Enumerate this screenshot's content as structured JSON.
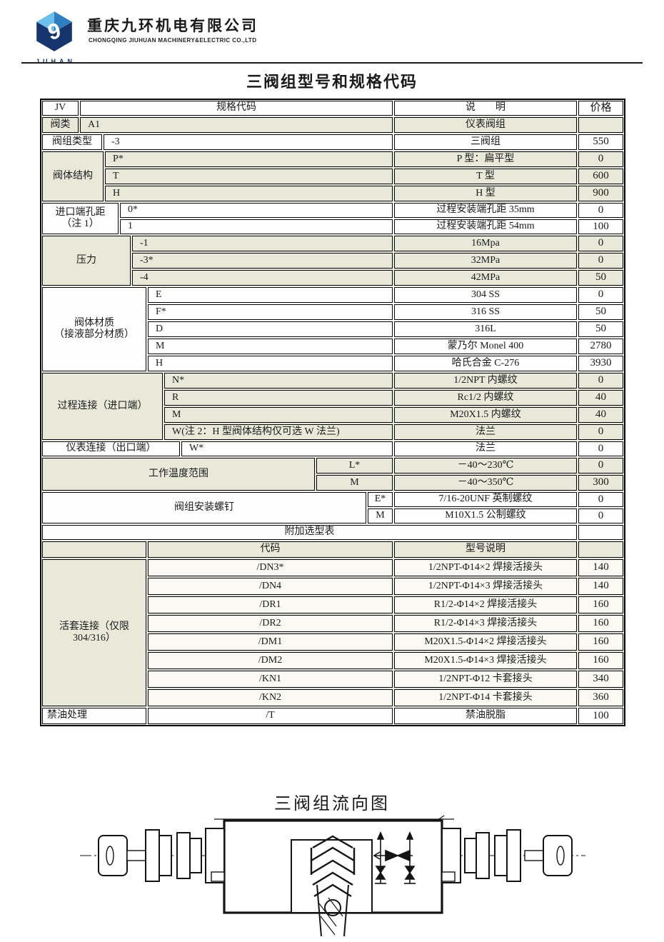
{
  "letterhead": {
    "logo_text": "JUHAN",
    "company_cn": "重庆九环机电有限公司",
    "company_en": "CHONGQING JIUHUAN MACHINERY&ELECTRIC CO.,LTD"
  },
  "doc_title": "三阀组型号和规格代码",
  "colors": {
    "shade_beige": "#e9e9d9",
    "row_light": "#fbfaf2",
    "logo_dark_blue": "#16356e",
    "logo_mid_blue": "#2f7fc0",
    "logo_light_blue": "#6ac0ea",
    "border_black": "#000000"
  },
  "table": {
    "header": {
      "col_jv": "JV",
      "col_code": "规格代码",
      "col_desc": "说　　明",
      "col_price": "价格"
    },
    "sections": [
      {
        "type": "header",
        "bg": "white"
      },
      {
        "label": "阀类",
        "bg": "beige",
        "rows": [
          {
            "code": "A1",
            "desc": "仪表阀组",
            "price": ""
          }
        ]
      },
      {
        "label": "阀组类型",
        "bg": "white",
        "rows": [
          {
            "code": "-3",
            "desc": "三阀组",
            "price": "550"
          }
        ]
      },
      {
        "label": "阀体结构",
        "bg": "beige",
        "rows": [
          {
            "code": "P*",
            "desc": "P 型：扁平型",
            "price": "0"
          },
          {
            "code": "T",
            "desc": "T 型",
            "price": "600"
          },
          {
            "code": "H",
            "desc": "H 型",
            "price": "900"
          }
        ]
      },
      {
        "label": "进口端孔距\n（注 1）",
        "bg": "white",
        "rows": [
          {
            "code": "0*",
            "desc": "过程安装端孔距 35mm",
            "price": "0"
          },
          {
            "code": "1",
            "desc": "过程安装端孔距 54mm",
            "price": "100"
          }
        ]
      },
      {
        "label": "压力",
        "bg": "beige",
        "rows": [
          {
            "code": "-1",
            "desc": "16Mpa",
            "price": "0"
          },
          {
            "code": "-3*",
            "desc": "32MPa",
            "price": "0"
          },
          {
            "code": "-4",
            "desc": "42MPa",
            "price": "50"
          }
        ]
      },
      {
        "label": "阀体材质\n（接液部分材质）",
        "bg": "white",
        "rows": [
          {
            "code": "E",
            "desc": "304 SS",
            "price": "0"
          },
          {
            "code": "F*",
            "desc": "316 SS",
            "price": "50"
          },
          {
            "code": "D",
            "desc": "316L",
            "price": "50"
          },
          {
            "code": "M",
            "desc": "蒙乃尔 Monel 400",
            "price": "2780"
          },
          {
            "code": "H",
            "desc": "哈氏合金 C-276",
            "price": "3930"
          }
        ]
      },
      {
        "label": "过程连接（进口端）",
        "bg": "beige",
        "rows": [
          {
            "code": "N*",
            "desc": "1/2NPT 内螺纹",
            "price": "0"
          },
          {
            "code": "R",
            "desc": "Rc1/2 内螺纹",
            "price": "40"
          },
          {
            "code": "M",
            "desc": "M20X1.5 内螺纹",
            "price": "40"
          },
          {
            "code": "W(注 2：H 型阀体结构仅可选 W 法兰)",
            "desc": "法兰",
            "price": "0"
          }
        ]
      },
      {
        "label": "仪表连接（出口端）",
        "bg": "white",
        "rows": [
          {
            "code": "W*",
            "desc": "法兰",
            "price": "0"
          }
        ]
      },
      {
        "label": "工作温度范围",
        "bg": "beige",
        "code_align": "center",
        "rows": [
          {
            "code": "L*",
            "desc": "－40～230℃",
            "price": "0"
          },
          {
            "code": "M",
            "desc": "－40～350℃",
            "price": "300"
          }
        ]
      },
      {
        "label": "阀组安装螺钉",
        "bg": "white",
        "code_align": "center",
        "rows": [
          {
            "code": "E*",
            "desc": "7/16-20UNF 英制螺纹",
            "price": "0"
          },
          {
            "code": "M",
            "desc": "M10X1.5 公制螺纹",
            "price": "0"
          }
        ]
      },
      {
        "type": "span",
        "bg": "white",
        "text": "附加选型表",
        "price": ""
      },
      {
        "label": "",
        "bg": "beige",
        "code_align": "center",
        "rows": [
          {
            "code": "代码",
            "desc": "型号说明",
            "price": ""
          }
        ]
      },
      {
        "label": "活套连接（仅限\n304/316）",
        "bg": "beige",
        "code_align": "center",
        "light_cells": true,
        "rows": [
          {
            "code": "/DN3*",
            "desc": "1/2NPT-Φ14×2 焊接活接头",
            "price": "140"
          },
          {
            "code": "/DN4",
            "desc": "1/2NPT-Φ14×3 焊接活接头",
            "price": "140"
          },
          {
            "code": "/DR1",
            "desc": "R1/2-Φ14×2 焊接活接头",
            "price": "160"
          },
          {
            "code": "/DR2",
            "desc": "R1/2-Φ14×3 焊接活接头",
            "price": "160"
          },
          {
            "code": "/DM1",
            "desc": "M20X1.5-Φ14×2 焊接活接头",
            "price": "160"
          },
          {
            "code": "/DM2",
            "desc": "M20X1.5-Φ14×3 焊接活接头",
            "price": "160"
          },
          {
            "code": "/KN1",
            "desc": "1/2NPT-Φ12 卡套接头",
            "price": "340"
          },
          {
            "code": "/KN2",
            "desc": "1/2NPT-Φ14 卡套接头",
            "price": "360"
          }
        ]
      },
      {
        "label": "禁油处理",
        "bg": "white",
        "code_align": "center",
        "label_align": "left",
        "rows": [
          {
            "code": "/T",
            "desc": "禁油脱脂",
            "price": "100"
          }
        ]
      }
    ]
  },
  "diagram": {
    "title": "三阀组流向图"
  }
}
